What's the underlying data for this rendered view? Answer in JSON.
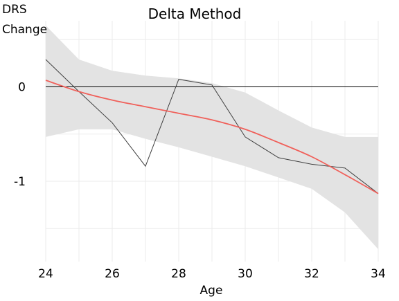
{
  "chart_data": {
    "type": "line",
    "title": "Delta Method",
    "ylabel_lines": [
      "DRS",
      "Change"
    ],
    "xlabel": "Age",
    "xlim": [
      24,
      34
    ],
    "ylim": [
      -1.85,
      0.7
    ],
    "x_ticks": [
      24,
      26,
      28,
      30,
      32,
      34
    ],
    "x_tick_labels": [
      "24",
      "26",
      "28",
      "30",
      "32",
      "34"
    ],
    "x_minor_grid": [
      25,
      27,
      29,
      31,
      33
    ],
    "y_ticks": [
      0,
      -1
    ],
    "y_tick_labels": [
      "0",
      "-1"
    ],
    "y_minor_grid": [
      0.5,
      -0.5,
      -1.5
    ],
    "grid": true,
    "reference_line_y": 0,
    "series": [
      {
        "style": "raw-line",
        "color": "#404040",
        "x": [
          24,
          25,
          26,
          27,
          28,
          29,
          30,
          31,
          32,
          33,
          34
        ],
        "y": [
          0.29,
          -0.05,
          -0.38,
          -0.84,
          0.08,
          0.02,
          -0.53,
          -0.75,
          -0.82,
          -0.86,
          -1.13
        ]
      },
      {
        "style": "fitted-line",
        "color": "#f0605a",
        "x": [
          24,
          25,
          26,
          27,
          28,
          29,
          30,
          31,
          32,
          33,
          34
        ],
        "y": [
          0.07,
          -0.05,
          -0.14,
          -0.21,
          -0.28,
          -0.35,
          -0.45,
          -0.59,
          -0.74,
          -0.93,
          -1.13
        ]
      },
      {
        "style": "confidence-band",
        "color": "#e3e3e3",
        "x": [
          24,
          25,
          26,
          27,
          28,
          29,
          30,
          31,
          32,
          33,
          34
        ],
        "upper": [
          0.65,
          0.29,
          0.17,
          0.12,
          0.09,
          0.04,
          -0.06,
          -0.25,
          -0.43,
          -0.53,
          -0.53
        ],
        "lower": [
          -0.53,
          -0.45,
          -0.45,
          -0.55,
          -0.64,
          -0.74,
          -0.84,
          -0.96,
          -1.08,
          -1.33,
          -1.72
        ]
      }
    ]
  }
}
